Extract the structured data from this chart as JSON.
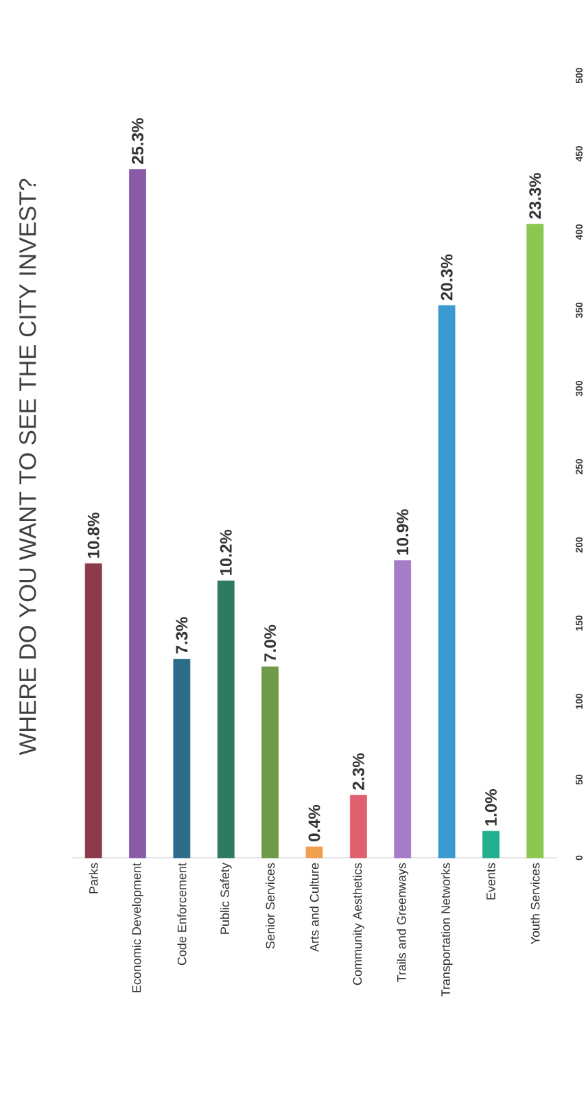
{
  "chart_data": {
    "type": "bar",
    "title": "WHERE DO YOU WANT TO SEE THE CITY INVEST?",
    "categories": [
      "Parks",
      "Economic Development",
      "Code Enforcement",
      "Public Safety",
      "Senior Services",
      "Arts and Culture",
      "Community Aesthetics",
      "Trails and Greenways",
      "Transportation Networks",
      "Events",
      "Youth Services"
    ],
    "values": [
      188,
      440,
      127,
      177,
      122,
      7,
      40,
      190,
      353,
      17,
      405
    ],
    "annotations": [
      {
        "text": "10.8%",
        "x": "Parks",
        "y": 188
      },
      {
        "text": "25.3%",
        "x": "Economic Development",
        "y": 440
      },
      {
        "text": "7.3%",
        "x": "Code Enforcement",
        "y": 127
      },
      {
        "text": "10.2%",
        "x": "Public Safety",
        "y": 177
      },
      {
        "text": "7.0%",
        "x": "Senior Services",
        "y": 122
      },
      {
        "text": "0.4%",
        "x": "Arts and Culture",
        "y": 7
      },
      {
        "text": "2.3%",
        "x": "Community Aesthetics",
        "y": 40
      },
      {
        "text": "10.9%",
        "x": "Trails and Greenways",
        "y": 190
      },
      {
        "text": "20.3%",
        "x": "Transportation Networks",
        "y": 353
      },
      {
        "text": "1.0%",
        "x": "Events",
        "y": 17
      },
      {
        "text": "23.3%",
        "x": "Youth Services",
        "y": 405
      }
    ],
    "colors": [
      "#8b3a4a",
      "#8a5aa8",
      "#2e6d8a",
      "#2e7a5e",
      "#6e9a4a",
      "#f0a050",
      "#e06070",
      "#a57cc8",
      "#3a9ad0",
      "#20b090",
      "#8cc850"
    ],
    "ylim": [
      0,
      500
    ],
    "yticks": [
      0,
      50,
      100,
      150,
      200,
      250,
      300,
      350,
      400,
      450,
      500
    ]
  }
}
